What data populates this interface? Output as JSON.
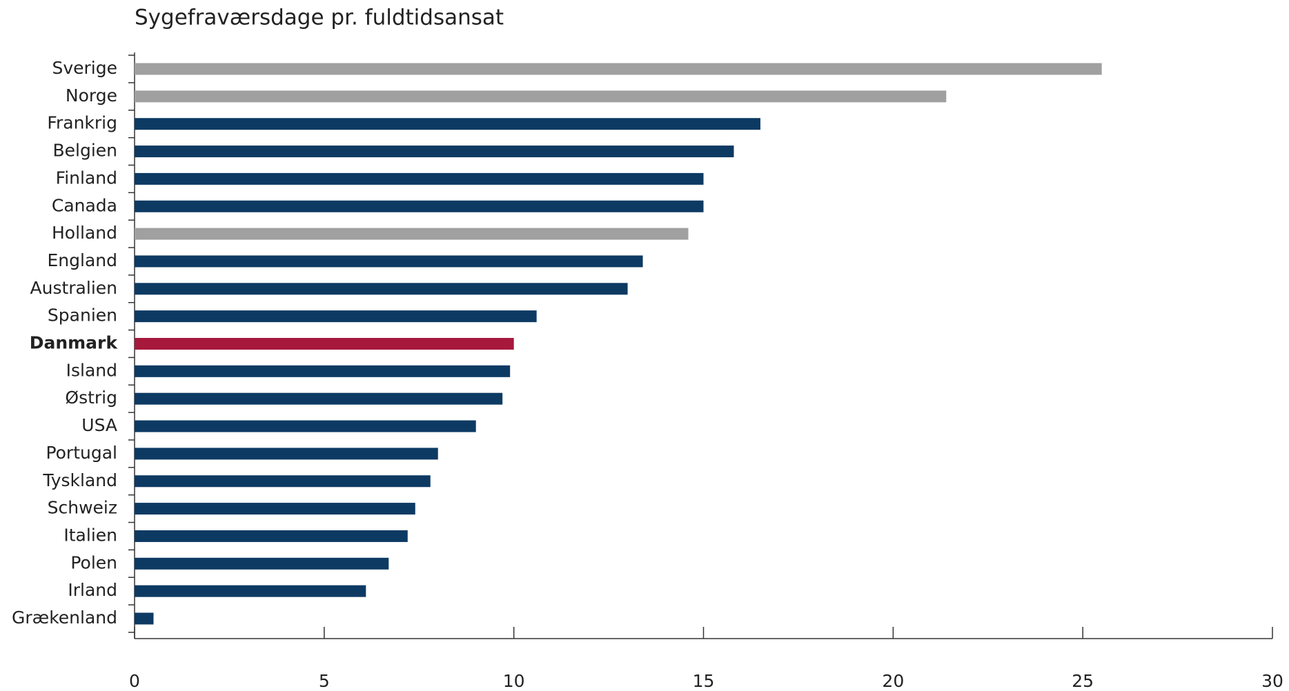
{
  "chart_data": {
    "type": "barh",
    "title": "Sygefraværsdage pr. fuldtidsansat",
    "categories": [
      "Sverige",
      "Norge",
      "Frankrig",
      "Belgien",
      "Finland",
      "Canada",
      "Holland",
      "England",
      "Australien",
      "Spanien",
      "Danmark",
      "Island",
      "Østrig",
      "USA",
      "Portugal",
      "Tyskland",
      "Schweiz",
      "Italien",
      "Polen",
      "Irland",
      "Grækenland"
    ],
    "values": [
      25.5,
      21.4,
      16.5,
      15.8,
      15.0,
      15.0,
      14.6,
      13.4,
      13.0,
      10.6,
      10.0,
      9.9,
      9.7,
      9.0,
      8.0,
      7.8,
      7.4,
      7.2,
      6.7,
      6.1,
      0.5
    ],
    "colors": [
      "#a0a0a0",
      "#a0a0a0",
      "#0d3a63",
      "#0d3a63",
      "#0d3a63",
      "#0d3a63",
      "#a0a0a0",
      "#0d3a63",
      "#0d3a63",
      "#0d3a63",
      "#a6193c",
      "#0d3a63",
      "#0d3a63",
      "#0d3a63",
      "#0d3a63",
      "#0d3a63",
      "#0d3a63",
      "#0d3a63",
      "#0d3a63",
      "#0d3a63",
      "#0d3a63"
    ],
    "highlight_color": "#a6193c",
    "xlim": [
      0,
      30
    ],
    "xticks": [
      0,
      5,
      10,
      15,
      20,
      25,
      30
    ],
    "grid": false
  }
}
